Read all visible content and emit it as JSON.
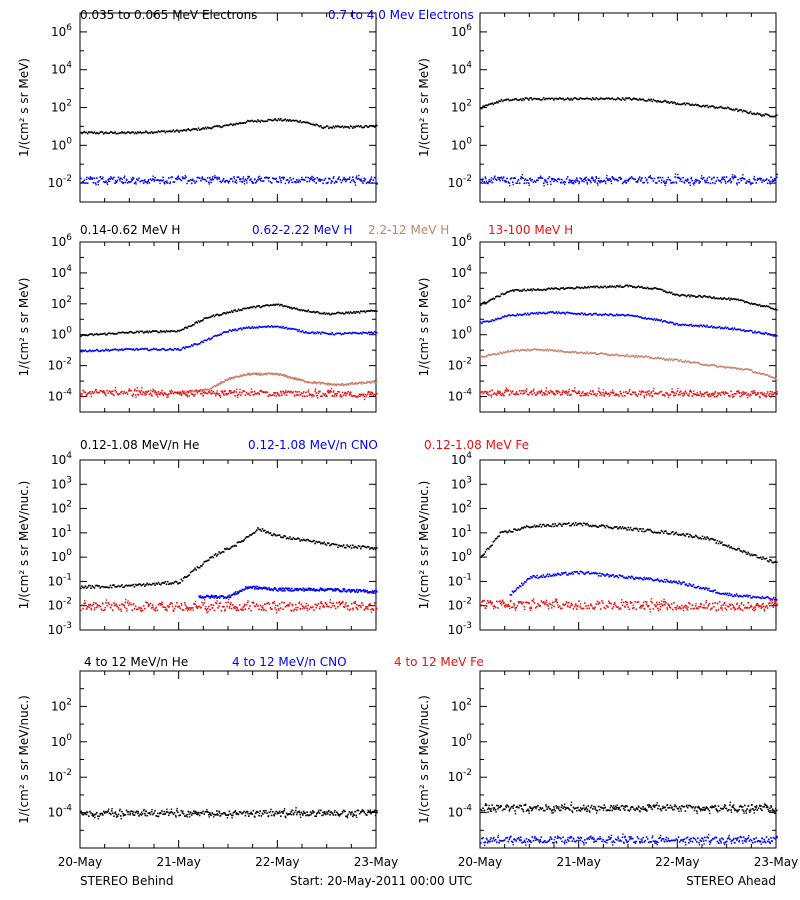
{
  "colors": {
    "black": "#000000",
    "blue": "#0000ff",
    "tan": "#c8826a",
    "red": "#ee1010"
  },
  "headers": [
    [
      {
        "text": "0.035 to 0.065 MeV Electrons",
        "color": "black"
      },
      {
        "text": "0.7 to 4.0 Mev Electrons",
        "color": "blue"
      }
    ],
    [
      {
        "text": "0.14-0.62 MeV H",
        "color": "black"
      },
      {
        "text": "0.62-2.22 MeV H",
        "color": "blue"
      },
      {
        "text": "2.2-12 MeV H",
        "color": "tan"
      },
      {
        "text": "13-100 MeV H",
        "color": "red"
      }
    ],
    [
      {
        "text": "0.12-1.08 MeV/n He",
        "color": "black"
      },
      {
        "text": "0.12-1.08 MeV/n CNO",
        "color": "blue"
      },
      {
        "text": "0.12-1.08 MeV Fe",
        "color": "red"
      }
    ],
    [
      {
        "text": "4 to 12 MeV/n He",
        "color": "black"
      },
      {
        "text": "4 to 12 MeV/n CNO",
        "color": "blue"
      },
      {
        "text": "4 to 12 MeV Fe",
        "color": "red"
      }
    ]
  ],
  "x_ticks": [
    "20-May",
    "21-May",
    "22-May",
    "23-May"
  ],
  "footer": {
    "left": "STEREO Behind",
    "center": "Start: 20-May-2011 00:00 UTC",
    "right": "STEREO Ahead"
  },
  "chart_data": [
    {
      "type": "scatter",
      "row": 1,
      "spacecraft": "STEREO Behind",
      "yscale": "log",
      "ylim_exp": [
        -3,
        7
      ],
      "yticks_exp": [
        -2,
        0,
        2,
        4,
        6
      ],
      "ylabel": "1/(cm² s sr MeV)",
      "x": [
        0,
        3
      ],
      "series": [
        {
          "name": "0.035 to 0.065 MeV Electrons",
          "color": "black",
          "points": [
            [
              0,
              0.7
            ],
            [
              0.5,
              0.7
            ],
            [
              1,
              0.8
            ],
            [
              1.2,
              0.9
            ],
            [
              1.5,
              1.1
            ],
            [
              1.7,
              1.3
            ],
            [
              2,
              1.4
            ],
            [
              2.25,
              1.3
            ],
            [
              2.45,
              1.0
            ],
            [
              2.7,
              1.0
            ],
            [
              3,
              1.05
            ]
          ]
        },
        {
          "name": "0.7 to 4.0 Mev Electrons",
          "color": "blue",
          "noisy": true,
          "points": [
            [
              0,
              -1.8
            ],
            [
              3,
              -1.8
            ]
          ]
        }
      ]
    },
    {
      "type": "scatter",
      "row": 1,
      "spacecraft": "STEREO Ahead",
      "yscale": "log",
      "ylim_exp": [
        -3,
        7
      ],
      "yticks_exp": [
        -2,
        0,
        2,
        4,
        6
      ],
      "ylabel": "1/(cm² s sr MeV)",
      "x": [
        0,
        3
      ],
      "series": [
        {
          "color": "black",
          "points": [
            [
              0,
              2.0
            ],
            [
              0.2,
              2.4
            ],
            [
              0.5,
              2.5
            ],
            [
              1,
              2.5
            ],
            [
              1.5,
              2.5
            ],
            [
              1.8,
              2.4
            ],
            [
              2,
              2.25
            ],
            [
              2.3,
              2.1
            ],
            [
              2.5,
              2.0
            ],
            [
              2.7,
              1.8
            ],
            [
              2.85,
              1.65
            ],
            [
              3,
              1.6
            ]
          ]
        },
        {
          "color": "blue",
          "noisy": true,
          "points": [
            [
              0,
              -1.8
            ],
            [
              3,
              -1.8
            ]
          ]
        }
      ]
    },
    {
      "type": "scatter",
      "row": 2,
      "spacecraft": "STEREO Behind",
      "yscale": "log",
      "ylim_exp": [
        -5,
        6
      ],
      "yticks_exp": [
        -4,
        -2,
        0,
        2,
        4,
        6
      ],
      "ylabel": "1/(cm² s sr MeV)",
      "x": [
        0,
        3
      ],
      "series": [
        {
          "name": "0.14-0.62 MeV H",
          "color": "black",
          "points": [
            [
              0,
              0.0
            ],
            [
              0.5,
              0.2
            ],
            [
              1,
              0.3
            ],
            [
              1.1,
              0.6
            ],
            [
              1.3,
              1.2
            ],
            [
              1.5,
              1.5
            ],
            [
              1.7,
              1.8
            ],
            [
              2,
              2.0
            ],
            [
              2.2,
              1.7
            ],
            [
              2.5,
              1.4
            ],
            [
              2.8,
              1.5
            ],
            [
              3,
              1.6
            ]
          ]
        },
        {
          "name": "0.62-2.22 MeV H",
          "color": "blue",
          "points": [
            [
              0,
              -1.0
            ],
            [
              0.5,
              -0.9
            ],
            [
              1,
              -0.9
            ],
            [
              1.2,
              -0.5
            ],
            [
              1.5,
              0.3
            ],
            [
              1.7,
              0.5
            ],
            [
              2,
              0.6
            ],
            [
              2.3,
              0.2
            ],
            [
              2.6,
              0.1
            ],
            [
              3,
              0.2
            ]
          ]
        },
        {
          "name": "2.2-12 MeV H",
          "color": "tan",
          "points": [
            [
              1,
              -3.7
            ],
            [
              1.3,
              -3.5
            ],
            [
              1.5,
              -2.8
            ],
            [
              1.7,
              -2.5
            ],
            [
              2,
              -2.5
            ],
            [
              2.3,
              -3.0
            ],
            [
              2.6,
              -3.2
            ],
            [
              3,
              -3.0
            ]
          ]
        },
        {
          "name": "13-100 MeV H",
          "color": "red",
          "noisy": true,
          "points": [
            [
              0,
              -3.7
            ],
            [
              3,
              -3.8
            ]
          ]
        }
      ]
    },
    {
      "type": "scatter",
      "row": 2,
      "spacecraft": "STEREO Ahead",
      "yscale": "log",
      "ylim_exp": [
        -5,
        6
      ],
      "yticks_exp": [
        -4,
        -2,
        0,
        2,
        4,
        6
      ],
      "ylabel": "1/(cm² s sr MeV)",
      "x": [
        0,
        3
      ],
      "series": [
        {
          "color": "black",
          "points": [
            [
              0,
              2.0
            ],
            [
              0.3,
              2.9
            ],
            [
              0.7,
              3.0
            ],
            [
              1,
              3.1
            ],
            [
              1.5,
              3.2
            ],
            [
              1.8,
              3.0
            ],
            [
              2,
              2.6
            ],
            [
              2.3,
              2.5
            ],
            [
              2.6,
              2.3
            ],
            [
              2.8,
              2.0
            ],
            [
              3,
              1.7
            ]
          ]
        },
        {
          "color": "blue",
          "points": [
            [
              0,
              0.8
            ],
            [
              0.3,
              1.3
            ],
            [
              0.7,
              1.5
            ],
            [
              1,
              1.4
            ],
            [
              1.5,
              1.3
            ],
            [
              1.8,
              1.0
            ],
            [
              2,
              0.7
            ],
            [
              2.3,
              0.6
            ],
            [
              2.6,
              0.4
            ],
            [
              3,
              0.0
            ]
          ]
        },
        {
          "color": "tan",
          "points": [
            [
              0,
              -1.4
            ],
            [
              0.3,
              -1.0
            ],
            [
              0.6,
              -0.9
            ],
            [
              1,
              -1.1
            ],
            [
              1.5,
              -1.3
            ],
            [
              2,
              -1.6
            ],
            [
              2.4,
              -2.0
            ],
            [
              2.7,
              -2.2
            ],
            [
              3,
              -2.8
            ]
          ]
        },
        {
          "color": "red",
          "noisy": true,
          "points": [
            [
              0,
              -3.7
            ],
            [
              3,
              -3.8
            ]
          ]
        }
      ]
    },
    {
      "type": "scatter",
      "row": 3,
      "spacecraft": "STEREO Behind",
      "yscale": "log",
      "ylim_exp": [
        -3,
        4
      ],
      "yticks_exp": [
        -3,
        -2,
        -1,
        0,
        1,
        2,
        3,
        4
      ],
      "ylabel": "1/(cm² s sr MeV/nuc.)",
      "x": [
        0,
        3
      ],
      "series": [
        {
          "name": "0.12-1.08 MeV/n He",
          "color": "black",
          "points": [
            [
              0,
              -1.2
            ],
            [
              0.5,
              -1.15
            ],
            [
              1,
              -1.0
            ],
            [
              1.15,
              -0.5
            ],
            [
              1.4,
              0.2
            ],
            [
              1.6,
              0.6
            ],
            [
              1.8,
              1.2
            ],
            [
              2,
              0.9
            ],
            [
              2.3,
              0.7
            ],
            [
              2.6,
              0.5
            ],
            [
              3,
              0.4
            ]
          ]
        },
        {
          "name": "0.12-1.08 MeV/n CNO",
          "color": "blue",
          "points": [
            [
              1.2,
              -1.6
            ],
            [
              1.5,
              -1.6
            ],
            [
              1.7,
              -1.2
            ],
            [
              2,
              -1.3
            ],
            [
              2.5,
              -1.3
            ],
            [
              3,
              -1.4
            ]
          ]
        },
        {
          "name": "0.12-1.08 MeV Fe",
          "color": "red",
          "noisy": true,
          "points": [
            [
              0,
              -2.0
            ],
            [
              3,
              -2.0
            ]
          ]
        }
      ]
    },
    {
      "type": "scatter",
      "row": 3,
      "spacecraft": "STEREO Ahead",
      "yscale": "log",
      "ylim_exp": [
        -3,
        4
      ],
      "yticks_exp": [
        -3,
        -2,
        -1,
        0,
        1,
        2,
        3,
        4
      ],
      "ylabel": "1/(cm² s sr MeV/nuc.)",
      "x": [
        0,
        3
      ],
      "series": [
        {
          "color": "black",
          "points": [
            [
              0,
              0.0
            ],
            [
              0.2,
              1.0
            ],
            [
              0.5,
              1.3
            ],
            [
              1,
              1.4
            ],
            [
              1.5,
              1.2
            ],
            [
              2,
              1.0
            ],
            [
              2.3,
              0.8
            ],
            [
              2.5,
              0.5
            ],
            [
              2.7,
              0.2
            ],
            [
              3,
              -0.2
            ]
          ]
        },
        {
          "color": "blue",
          "points": [
            [
              0.3,
              -1.5
            ],
            [
              0.5,
              -0.8
            ],
            [
              1,
              -0.6
            ],
            [
              1.5,
              -0.8
            ],
            [
              2,
              -1.0
            ],
            [
              2.5,
              -1.5
            ],
            [
              3,
              -1.7
            ]
          ]
        },
        {
          "color": "red",
          "noisy": true,
          "points": [
            [
              0,
              -1.9
            ],
            [
              3,
              -2.0
            ]
          ]
        }
      ]
    },
    {
      "type": "scatter",
      "row": 4,
      "spacecraft": "STEREO Behind",
      "yscale": "log",
      "ylim_exp": [
        -6,
        4
      ],
      "yticks_exp": [
        -4,
        -2,
        0,
        2
      ],
      "ylabel": "1/(cm² s sr MeV/nuc.)",
      "x": [
        0,
        3
      ],
      "series": [
        {
          "name": "4 to 12 MeV/n He",
          "color": "black",
          "noisy": true,
          "points": [
            [
              0,
              -4.0
            ],
            [
              3,
              -4.0
            ]
          ]
        }
      ]
    },
    {
      "type": "scatter",
      "row": 4,
      "spacecraft": "STEREO Ahead",
      "yscale": "log",
      "ylim_exp": [
        -6,
        4
      ],
      "yticks_exp": [
        -4,
        -2,
        0,
        2
      ],
      "ylabel": "1/(cm² s sr MeV/nuc.)",
      "x": [
        0,
        3
      ],
      "series": [
        {
          "color": "black",
          "noisy": true,
          "points": [
            [
              0,
              -3.7
            ],
            [
              3,
              -3.7
            ]
          ]
        },
        {
          "color": "blue",
          "noisy": true,
          "points": [
            [
              0,
              -5.5
            ],
            [
              3,
              -5.5
            ]
          ]
        }
      ]
    }
  ]
}
